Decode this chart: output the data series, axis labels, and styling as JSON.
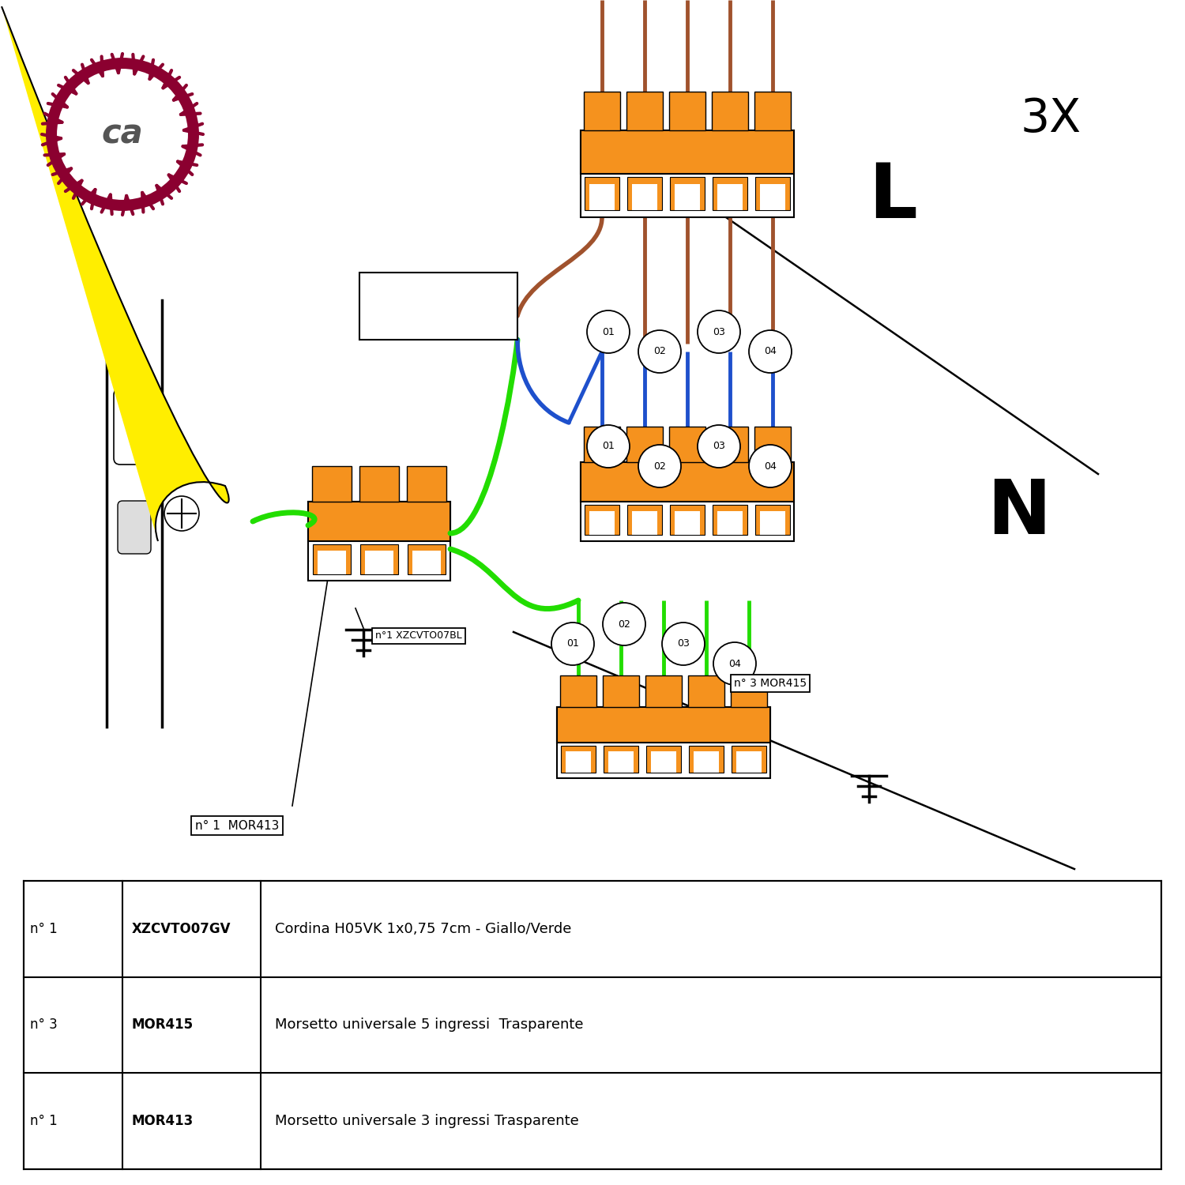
{
  "orange": "#F5921E",
  "brown": "#A0522D",
  "blue": "#1E50CC",
  "green": "#22DD00",
  "yellow": "#FFEE00",
  "dark_red": "#8B0030",
  "gray_text": "#555555",
  "black": "#000000",
  "white": "#FFFFFF",
  "light_gray": "#DDDDDD",
  "table_rows": [
    [
      "n° 1",
      "MOR413",
      "Morsetto universale 3 ingressi Trasparente"
    ],
    [
      "n° 3",
      "MOR415",
      "Morsetto universale 5 ingressi  Trasparente"
    ],
    [
      "n° 1",
      "XZCVTO07GV",
      "Cordina H05VK 1x0,75 7cm - Giallo/Verde"
    ]
  ],
  "label_L": "L",
  "label_N": "N",
  "label_3X": "3X",
  "label_ca": "ca",
  "label_mor413": "n° 1  MOR413",
  "label_xzcvto07bl": "n°1 XZCVTO07BL",
  "label_n3mor415": "n° 3 MOR415",
  "fig_width": 15,
  "fig_height": 15,
  "dpi": 100
}
